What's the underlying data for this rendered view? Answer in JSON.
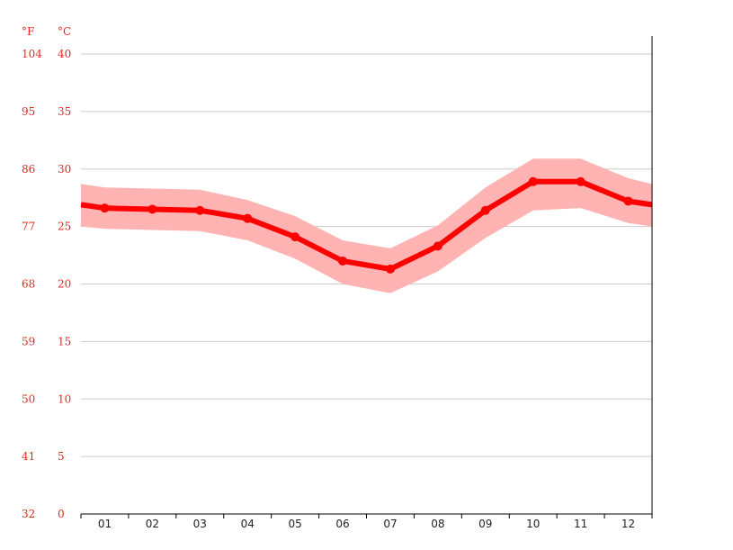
{
  "chart_data": {
    "type": "line",
    "title": "",
    "xlabel": "",
    "ylabel": "",
    "units": {
      "fahrenheit": "°F",
      "celsius": "°C"
    },
    "y_ticks_c": [
      0,
      5,
      10,
      15,
      20,
      25,
      30,
      35,
      40
    ],
    "y_ticks_f": [
      32,
      41,
      50,
      59,
      68,
      77,
      86,
      95,
      104
    ],
    "ylim": [
      0,
      40
    ],
    "categories": [
      "01",
      "02",
      "03",
      "04",
      "05",
      "06",
      "07",
      "08",
      "09",
      "10",
      "11",
      "12"
    ],
    "series": [
      {
        "values": [
          26.6,
          26.5,
          26.4,
          25.7,
          24.1,
          22.0,
          21.3,
          23.3,
          26.4,
          28.9,
          28.9,
          27.2
        ]
      }
    ],
    "range_high": [
      28.4,
      28.3,
      28.2,
      27.3,
      25.9,
      23.8,
      23.1,
      25.1,
      28.4,
      30.9,
      30.9,
      29.2
    ],
    "range_low": [
      24.8,
      24.7,
      24.6,
      23.8,
      22.2,
      20.0,
      19.2,
      21.1,
      24.0,
      26.4,
      26.6,
      25.3
    ],
    "wrap_start": {
      "value": 26.9,
      "high": 28.7,
      "low": 25.0
    },
    "wrap_end": {
      "value": 26.9,
      "high": 28.7,
      "low": 25.0
    },
    "grid": true,
    "colors": {
      "line": "#ff0000",
      "band": "#ffb3b3",
      "grid": "#cccccc",
      "axis_labels": "#e8271f",
      "x_labels": "#222222",
      "axis": "#000000"
    }
  }
}
